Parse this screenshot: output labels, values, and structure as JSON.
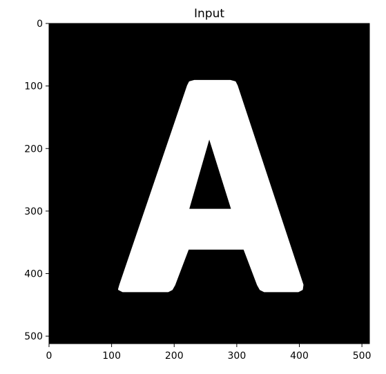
{
  "chart_data": {
    "type": "image",
    "title": "Input",
    "xlabel": "",
    "ylabel": "",
    "xlim": [
      0,
      512
    ],
    "ylim": [
      512,
      0
    ],
    "x_ticks": [
      0,
      100,
      200,
      300,
      400,
      500
    ],
    "y_ticks": [
      0,
      100,
      200,
      300,
      400,
      500
    ],
    "x_tick_labels": [
      "0",
      "100",
      "200",
      "300",
      "400",
      "500"
    ],
    "y_tick_labels": [
      "0",
      "100",
      "200",
      "300",
      "400",
      "500"
    ],
    "grid": false,
    "image": {
      "description_shape": "letter-A",
      "background_color": "#000000",
      "foreground_color": "#ffffff",
      "letter": {
        "outer": [
          [
            112,
            425
          ],
          [
            118,
            428
          ],
          [
            190,
            428
          ],
          [
            196,
            425
          ],
          [
            200,
            418
          ],
          [
            222,
            360
          ],
          [
            312,
            360
          ],
          [
            334,
            418
          ],
          [
            338,
            425
          ],
          [
            344,
            428
          ],
          [
            398,
            428
          ],
          [
            404,
            425
          ],
          [
            405,
            418
          ],
          [
            300,
            100
          ],
          [
            297,
            94
          ],
          [
            290,
            92
          ],
          [
            232,
            92
          ],
          [
            225,
            94
          ],
          [
            222,
            100
          ],
          [
            114,
            418
          ]
        ],
        "counter": [
          [
            222,
            298
          ],
          [
            293,
            298
          ],
          [
            256,
            180
          ]
        ]
      }
    }
  }
}
